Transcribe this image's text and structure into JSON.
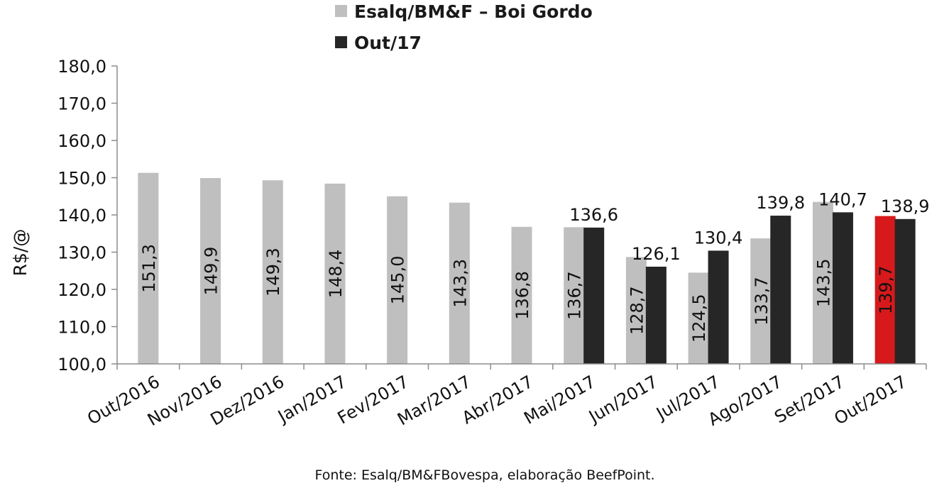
{
  "chart_data": {
    "type": "bar",
    "categories": [
      "Out/2016",
      "Nov/2016",
      "Dez/2016",
      "Jan/2017",
      "Fev/2017",
      "Mar/2017",
      "Abr/2017",
      "Mai/2017",
      "Jun/2017",
      "Jul/2017",
      "Ago/2017",
      "Set/2017",
      "Out/2017"
    ],
    "series": [
      {
        "name": "Esalq/BM&F – Boi Gordo",
        "color": "#bfbfbf",
        "highlight_color": "#d7191c",
        "highlight_index": 12,
        "values": [
          151.3,
          149.9,
          149.3,
          148.4,
          145.0,
          143.3,
          136.8,
          136.7,
          128.7,
          124.5,
          133.7,
          143.5,
          139.7
        ],
        "labels": [
          "151,3",
          "149,9",
          "149,3",
          "148,4",
          "145,0",
          "143,3",
          "136,8",
          "136,7",
          "128,7",
          "124,5",
          "133,7",
          "143,5",
          "139,7"
        ]
      },
      {
        "name": "Out/17",
        "color": "#262626",
        "values": [
          null,
          null,
          null,
          null,
          null,
          null,
          null,
          136.6,
          126.1,
          130.4,
          139.8,
          140.7,
          138.9
        ],
        "labels": [
          "",
          "",
          "",
          "",
          "",
          "",
          "",
          "136,6",
          "126,1",
          "130,4",
          "139,8",
          "140,7",
          "138,9"
        ]
      }
    ],
    "ylabel": "R$/@",
    "xlabel": "",
    "ylim": [
      100,
      180
    ],
    "yticks": [
      100,
      110,
      120,
      130,
      140,
      150,
      160,
      170,
      180
    ],
    "ytick_labels": [
      "100,0",
      "110,0",
      "120,0",
      "130,0",
      "140,0",
      "150,0",
      "160,0",
      "170,0",
      "180,0"
    ],
    "legend_position": "top",
    "grid": false,
    "source": "Fonte: Esalq/BM&FBovespa, elaboração BeefPoint."
  }
}
